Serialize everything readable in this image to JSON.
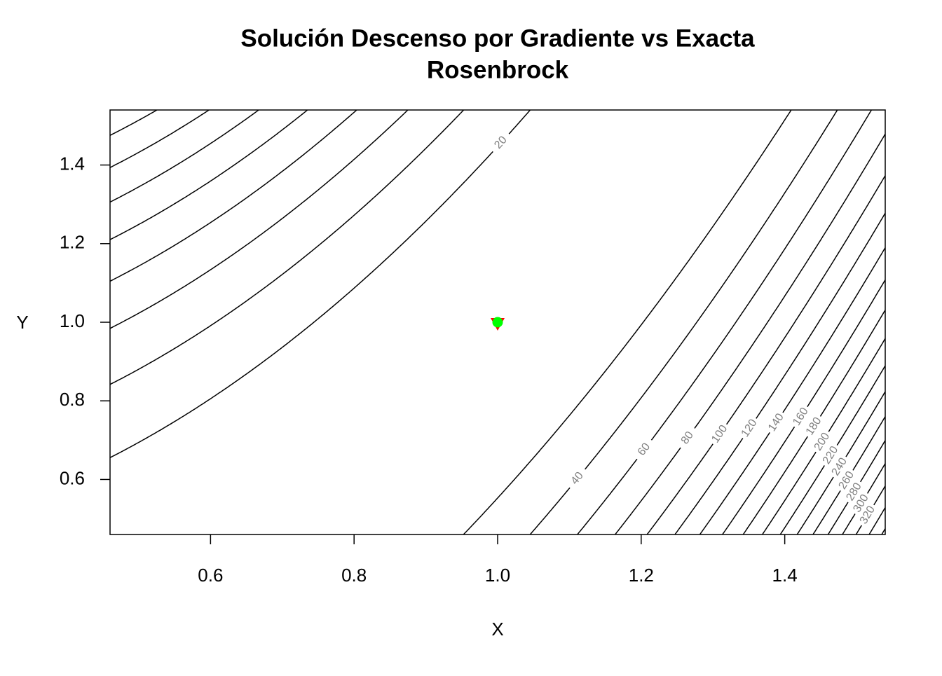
{
  "chart_data": {
    "type": "contour",
    "title": "Solución Descenso por Gradiente vs Exacta",
    "subtitle": "Rosenbrock",
    "x_label": "X",
    "y_label": "Y",
    "xlim": [
      0.46,
      1.54
    ],
    "ylim": [
      0.46,
      1.54
    ],
    "xticks": [
      0.6,
      0.8,
      {
        "value": 1,
        "label": "1.0"
      },
      1.2,
      1.4
    ],
    "yticks": [
      0.6,
      0.8,
      {
        "value": 1,
        "label": "1.0"
      },
      1.2,
      1.4
    ],
    "levels": [
      20,
      40,
      60,
      80,
      100,
      120,
      140,
      160,
      180,
      200,
      220,
      240,
      260,
      280,
      300,
      320,
      340,
      360
    ],
    "line_color": "#000000",
    "label_color": "#808080",
    "points": [
      {
        "x": [
          1
        ],
        "y": [
          1
        ],
        "color": "#ff0000",
        "shape": "triangle-down"
      },
      {
        "x": [
          1
        ],
        "y": [
          1
        ],
        "color": "#00ff00",
        "shape": "circle"
      }
    ]
  }
}
